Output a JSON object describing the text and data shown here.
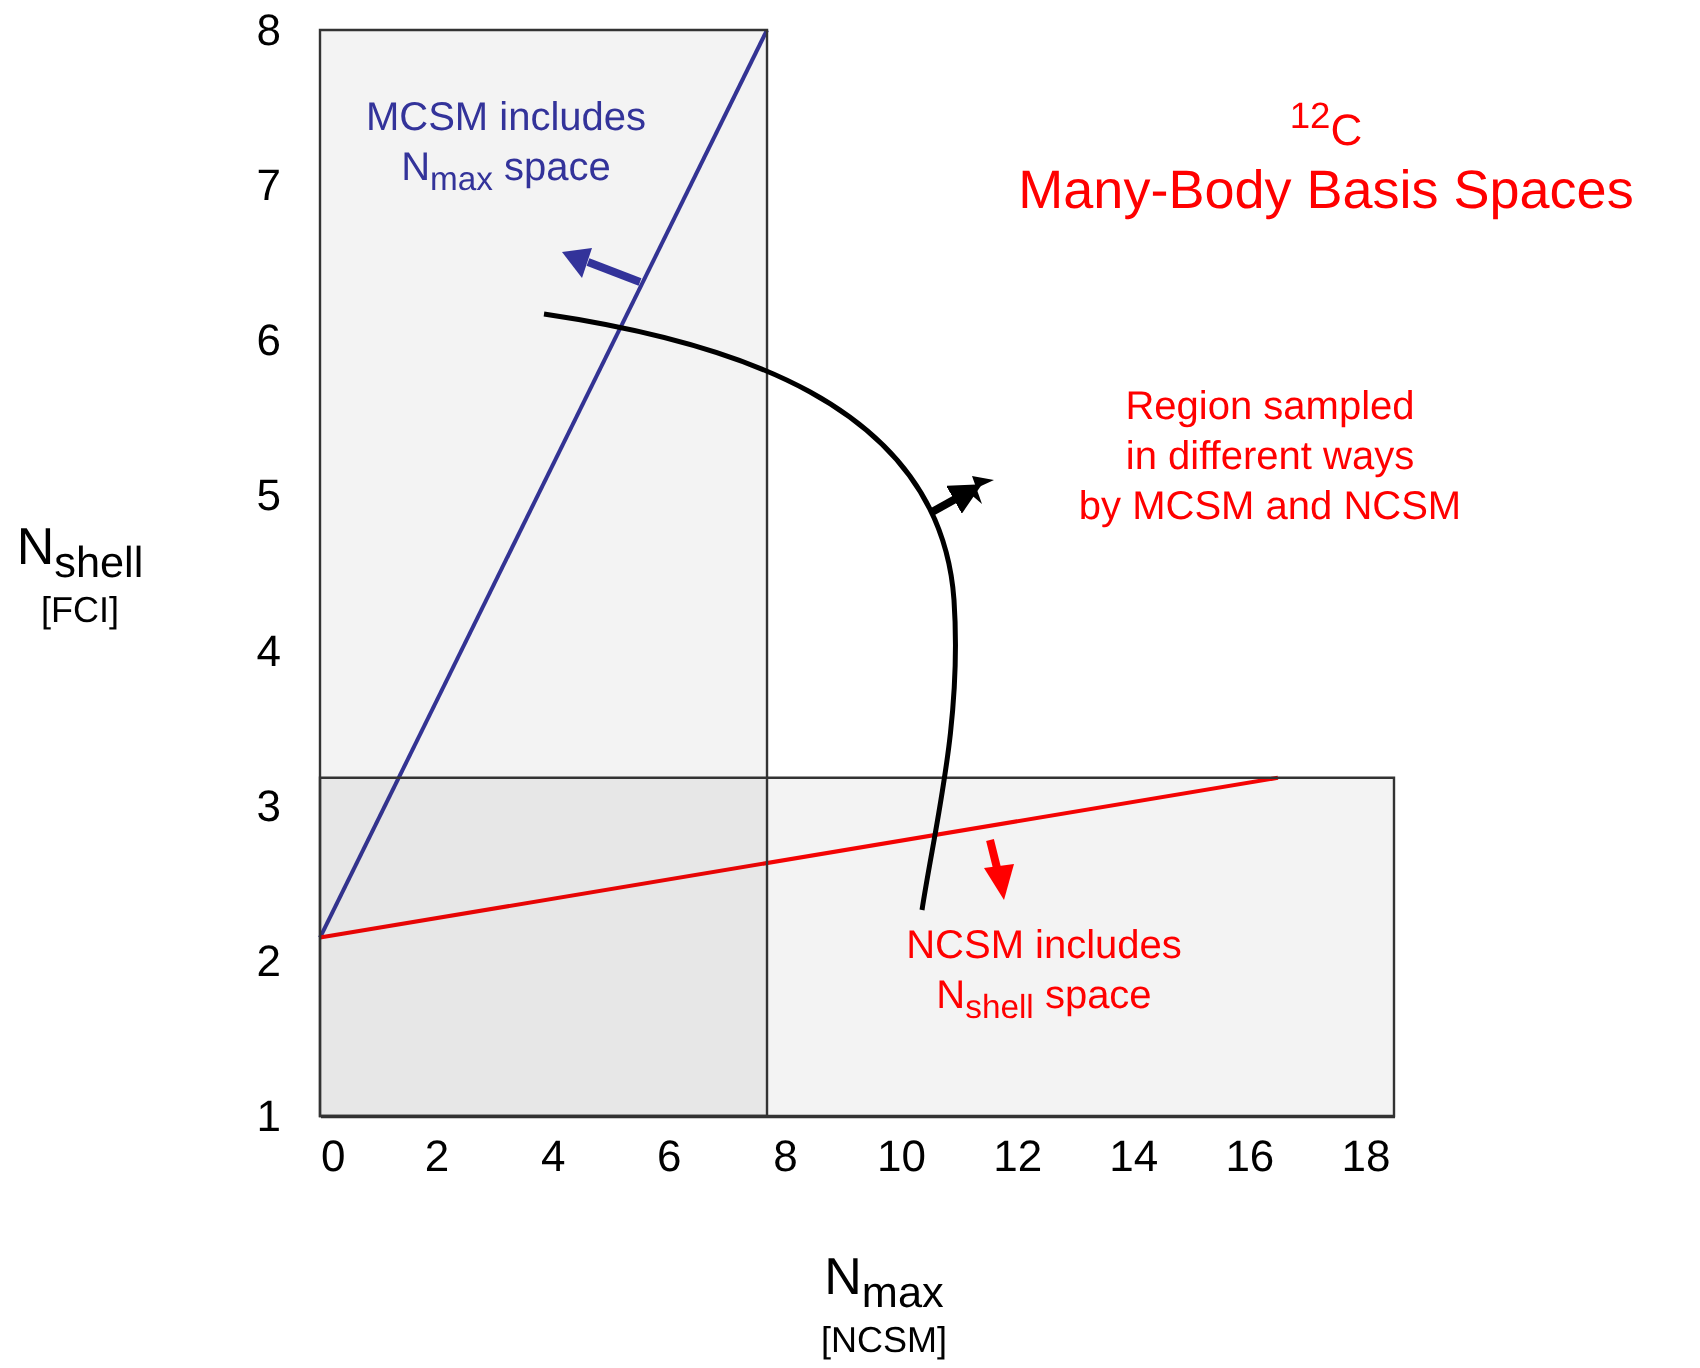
{
  "chart_data": {
    "type": "line",
    "title": "$^{12}$C\nMany-Body Basis Spaces",
    "xlabel": "N$_{max}$\n[NCSM]",
    "ylabel": "N$_{shell}$\n[FCI]",
    "annotations": [
      "MCSM includes\nN$_{max}$ space",
      "Region sampled\nin different ways\nby MCSM and NCSM",
      "NCSM includes\nN$_{shell}$ space"
    ],
    "xlim": [
      0,
      18.5
    ],
    "ylim": [
      1,
      8
    ],
    "xticks": [
      0,
      2,
      4,
      6,
      8,
      10,
      12,
      14,
      16,
      18
    ],
    "yticks": [
      1,
      2,
      3,
      4,
      5,
      6,
      7,
      8
    ],
    "grid": false,
    "bands": [
      {
        "axis": "x",
        "from": 0,
        "to": 7.7,
        "color": "#333333"
      },
      {
        "axis": "y",
        "from": 1,
        "to": 3.18,
        "color": "#333333"
      }
    ],
    "series": [
      {
        "color": "#33339a",
        "x": [
          0,
          7.7
        ],
        "values": [
          2.15,
          8
        ]
      },
      {
        "color": "#ff0000",
        "x": [
          0,
          16.5
        ],
        "values": [
          2.15,
          3.18
        ]
      }
    ]
  }
}
